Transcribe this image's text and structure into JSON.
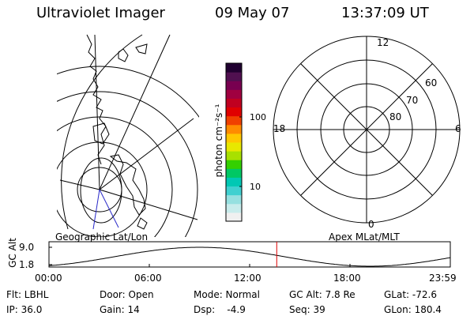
{
  "header": {
    "instrument": "Ultraviolet Imager",
    "date": "09 May 07",
    "time": "13:37:09 UT"
  },
  "left_panel": {
    "label": "Geographic Lat/Lon"
  },
  "right_panel": {
    "label": "Apex MLat/MLT",
    "mlt_labels": {
      "top": "12",
      "left": "18",
      "right": "6",
      "bottom": "0"
    },
    "mlat_labels": [
      "60",
      "70",
      "80"
    ]
  },
  "colorbar": {
    "unit_label": "photon cm⁻²s⁻¹",
    "tick_labels": [
      "100",
      "10"
    ],
    "colors": [
      "#f0f0f0",
      "#c8ecec",
      "#96e0e0",
      "#40d0d0",
      "#00c8b4",
      "#00c864",
      "#34d000",
      "#a8e000",
      "#e8e800",
      "#ffc800",
      "#ff8c00",
      "#f04000",
      "#e00000",
      "#c00020",
      "#a00040",
      "#780050",
      "#501050",
      "#200030"
    ]
  },
  "altitude_plot": {
    "axis_label": "GC Alt",
    "y_ticks": [
      "9.0",
      "1.8"
    ],
    "x_ticks": [
      "00:00",
      "06:00",
      "12:00",
      "18:00",
      "23:59"
    ],
    "marker_hour": 13.62,
    "marker_color": "#e00000"
  },
  "status": {
    "filter": "Flt: LBHL",
    "ip": "IP: 36.0",
    "door": "Door: Open",
    "gain": "Gain: 14",
    "mode": "Mode: Normal",
    "dsp": "Dsp:    -4.9",
    "gc_alt": "GC Alt: 7.8 Re",
    "seq": "Seq: 39",
    "glat": "GLat: -72.6",
    "glon": "GLon: 180.4"
  }
}
